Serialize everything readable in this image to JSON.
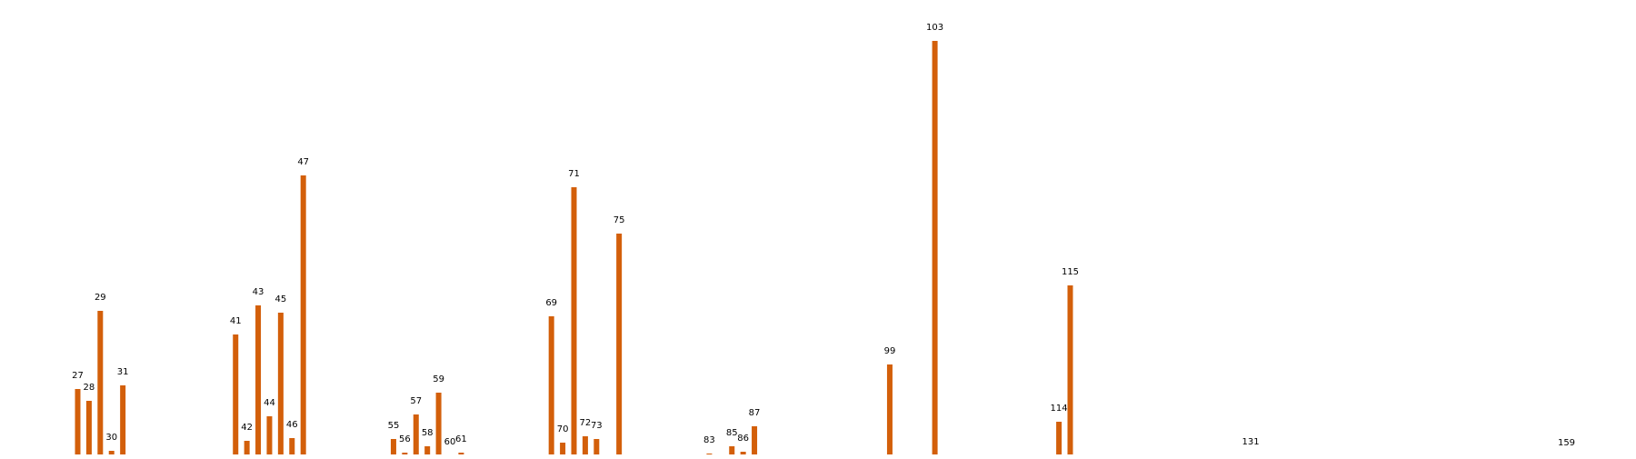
{
  "chart_data": {
    "type": "bar",
    "title": "",
    "xlabel": "",
    "ylabel": "",
    "color": "#d35f0a",
    "categories": [
      "27",
      "28",
      "29",
      "30",
      "31",
      "41",
      "42",
      "43",
      "44",
      "45",
      "46",
      "47",
      "55",
      "56",
      "57",
      "58",
      "59",
      "60",
      "61",
      "69",
      "70",
      "71",
      "72",
      "73",
      "75",
      "83",
      "85",
      "86",
      "87",
      "99",
      "103",
      "114",
      "115",
      "131",
      "159"
    ],
    "x": [
      27,
      28,
      29,
      30,
      31,
      41,
      42,
      43,
      44,
      45,
      46,
      47,
      55,
      56,
      57,
      58,
      59,
      60,
      61,
      69,
      70,
      71,
      72,
      73,
      75,
      83,
      85,
      86,
      87,
      99,
      103,
      114,
      115,
      131,
      159
    ],
    "values": [
      75,
      62,
      161,
      7,
      79,
      135,
      18,
      167,
      45,
      159,
      21,
      310,
      20,
      5,
      47,
      12,
      71,
      2,
      5,
      155,
      16,
      297,
      23,
      20,
      246,
      4,
      12,
      6,
      34,
      102,
      458,
      39,
      189,
      2,
      1
    ],
    "ylim": [
      0,
      480
    ],
    "grid": false,
    "legend": "none"
  }
}
